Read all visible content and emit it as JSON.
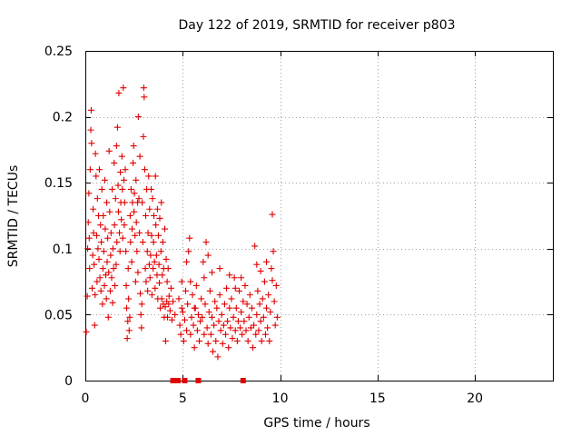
{
  "chart_data": {
    "type": "scatter",
    "title": "Day 122 of 2019, SRMTID for receiver p803",
    "xlabel": "GPS time / hours",
    "ylabel": "SRMTID / TECUs",
    "xlim": [
      0,
      24
    ],
    "ylim": [
      0,
      0.25
    ],
    "xticks": [
      0,
      5,
      10,
      15,
      20
    ],
    "xtick_labels": [
      "0",
      "5",
      "10",
      "15",
      "20"
    ],
    "yticks": [
      0,
      0.05,
      0.1,
      0.15,
      0.2,
      0.25
    ],
    "ytick_labels": [
      "0",
      "0.05",
      "0.1",
      "0.15",
      "0.2",
      "0.25"
    ],
    "grid": true,
    "marker_color": "#e00000",
    "series": [
      {
        "name": "SRMTID",
        "marker": "plus",
        "points": [
          [
            0.05,
            0.037
          ],
          [
            0.1,
            0.064
          ],
          [
            0.12,
            0.1
          ],
          [
            0.15,
            0.12
          ],
          [
            0.18,
            0.142
          ],
          [
            0.2,
            0.108
          ],
          [
            0.22,
            0.085
          ],
          [
            0.25,
            0.16
          ],
          [
            0.28,
            0.19
          ],
          [
            0.3,
            0.205
          ],
          [
            0.32,
            0.18
          ],
          [
            0.35,
            0.07
          ],
          [
            0.38,
            0.095
          ],
          [
            0.4,
            0.13
          ],
          [
            0.42,
            0.112
          ],
          [
            0.45,
            0.088
          ],
          [
            0.48,
            0.042
          ],
          [
            0.5,
            0.065
          ],
          [
            0.52,
            0.172
          ],
          [
            0.55,
            0.155
          ],
          [
            0.58,
            0.11
          ],
          [
            0.6,
            0.075
          ],
          [
            0.62,
            0.138
          ],
          [
            0.65,
            0.1
          ],
          [
            0.68,
            0.125
          ],
          [
            0.7,
            0.092
          ],
          [
            0.72,
            0.16
          ],
          [
            0.75,
            0.078
          ],
          [
            0.78,
            0.118
          ],
          [
            0.8,
            0.068
          ],
          [
            0.82,
            0.105
          ],
          [
            0.85,
            0.145
          ],
          [
            0.88,
            0.058
          ],
          [
            0.9,
            0.085
          ],
          [
            0.92,
            0.125
          ],
          [
            0.95,
            0.098
          ],
          [
            0.98,
            0.072
          ],
          [
            1.0,
            0.152
          ],
          [
            1.02,
            0.115
          ],
          [
            1.05,
            0.08
          ],
          [
            1.08,
            0.062
          ],
          [
            1.1,
            0.135
          ],
          [
            1.12,
            0.09
          ],
          [
            1.15,
            0.108
          ],
          [
            1.18,
            0.048
          ],
          [
            1.2,
            0.082
          ],
          [
            1.22,
            0.174
          ],
          [
            1.25,
            0.128
          ],
          [
            1.28,
            0.068
          ],
          [
            1.3,
            0.095
          ],
          [
            1.32,
            0.112
          ],
          [
            1.35,
            0.078
          ],
          [
            1.38,
            0.145
          ],
          [
            1.4,
            0.059
          ],
          [
            1.42,
            0.1
          ],
          [
            1.45,
            0.085
          ],
          [
            1.48,
            0.165
          ],
          [
            1.5,
            0.118
          ],
          [
            1.52,
            0.072
          ],
          [
            1.55,
            0.138
          ],
          [
            1.58,
            0.088
          ],
          [
            1.6,
            0.178
          ],
          [
            1.62,
            0.105
          ],
          [
            1.65,
            0.192
          ],
          [
            1.68,
            0.148
          ],
          [
            1.7,
            0.128
          ],
          [
            1.72,
            0.218
          ],
          [
            1.75,
            0.112
          ],
          [
            1.78,
            0.098
          ],
          [
            1.8,
            0.158
          ],
          [
            1.82,
            0.135
          ],
          [
            1.85,
            0.122
          ],
          [
            1.88,
            0.17
          ],
          [
            1.9,
            0.145
          ],
          [
            1.92,
            0.108
          ],
          [
            1.95,
            0.222
          ],
          [
            1.98,
            0.152
          ],
          [
            2.0,
            0.118
          ],
          [
            2.02,
            0.135
          ],
          [
            2.05,
            0.16
          ],
          [
            2.08,
            0.098
          ],
          [
            2.1,
            0.072
          ],
          [
            2.12,
            0.055
          ],
          [
            2.15,
            0.032
          ],
          [
            2.18,
            0.045
          ],
          [
            2.2,
            0.085
          ],
          [
            2.22,
            0.062
          ],
          [
            2.25,
            0.038
          ],
          [
            2.28,
            0.048
          ],
          [
            2.3,
            0.125
          ],
          [
            2.32,
            0.105
          ],
          [
            2.35,
            0.145
          ],
          [
            2.38,
            0.09
          ],
          [
            2.4,
            0.115
          ],
          [
            2.42,
            0.135
          ],
          [
            2.45,
            0.165
          ],
          [
            2.48,
            0.178
          ],
          [
            2.5,
            0.128
          ],
          [
            2.52,
            0.142
          ],
          [
            2.55,
            0.11
          ],
          [
            2.58,
            0.075
          ],
          [
            2.6,
            0.152
          ],
          [
            2.62,
            0.12
          ],
          [
            2.65,
            0.098
          ],
          [
            2.68,
            0.135
          ],
          [
            2.7,
            0.082
          ],
          [
            2.72,
            0.2
          ],
          [
            2.75,
            0.138
          ],
          [
            2.78,
            0.112
          ],
          [
            2.8,
            0.17
          ],
          [
            2.82,
            0.066
          ],
          [
            2.85,
            0.05
          ],
          [
            2.88,
            0.04
          ],
          [
            2.9,
            0.058
          ],
          [
            2.92,
            0.135
          ],
          [
            2.95,
            0.105
          ],
          [
            2.98,
            0.185
          ],
          [
            3.0,
            0.222
          ],
          [
            3.02,
            0.215
          ],
          [
            3.05,
            0.16
          ],
          [
            3.08,
            0.085
          ],
          [
            3.1,
            0.125
          ],
          [
            3.12,
            0.075
          ],
          [
            3.15,
            0.145
          ],
          [
            3.18,
            0.098
          ],
          [
            3.2,
            0.068
          ],
          [
            3.22,
            0.112
          ],
          [
            3.25,
            0.155
          ],
          [
            3.28,
            0.088
          ],
          [
            3.3,
            0.13
          ],
          [
            3.32,
            0.078
          ],
          [
            3.35,
            0.095
          ],
          [
            3.38,
            0.145
          ],
          [
            3.4,
            0.11
          ],
          [
            3.42,
            0.065
          ],
          [
            3.45,
            0.138
          ],
          [
            3.48,
            0.085
          ],
          [
            3.5,
            0.105
          ],
          [
            3.52,
            0.125
          ],
          [
            3.55,
            0.09
          ],
          [
            3.58,
            0.07
          ],
          [
            3.6,
            0.155
          ],
          [
            3.62,
            0.118
          ],
          [
            3.65,
            0.095
          ],
          [
            3.68,
            0.08
          ],
          [
            3.7,
            0.13
          ],
          [
            3.72,
            0.062
          ],
          [
            3.75,
            0.11
          ],
          [
            3.78,
            0.088
          ],
          [
            3.8,
            0.074
          ],
          [
            3.82,
            0.123
          ],
          [
            3.85,
            0.055
          ],
          [
            3.88,
            0.098
          ],
          [
            3.9,
            0.135
          ],
          [
            3.92,
            0.062
          ],
          [
            3.95,
            0.08
          ],
          [
            3.98,
            0.105
          ],
          [
            4.0,
            0.058
          ],
          [
            4.02,
            0.085
          ],
          [
            4.05,
            0.048
          ],
          [
            4.08,
            0.115
          ],
          [
            4.1,
            0.056
          ],
          [
            4.12,
            0.03
          ],
          [
            4.15,
            0.092
          ],
          [
            4.18,
            0.06
          ],
          [
            4.2,
            0.075
          ],
          [
            4.22,
            0.048
          ],
          [
            4.25,
            0.085
          ],
          [
            4.28,
            0.058
          ],
          [
            4.3,
            0.064
          ],
          [
            4.35,
            0.053
          ],
          [
            4.4,
            0.07
          ],
          [
            4.45,
            0.046
          ],
          [
            4.5,
            0.06
          ],
          [
            4.6,
            0.05
          ],
          [
            4.8,
            0.062
          ],
          [
            4.85,
            0.042
          ],
          [
            4.9,
            0.035
          ],
          [
            4.95,
            0.075
          ],
          [
            5.0,
            0.052
          ],
          [
            5.05,
            0.03
          ],
          [
            5.1,
            0.046
          ],
          [
            5.15,
            0.068
          ],
          [
            5.2,
            0.038
          ],
          [
            5.25,
            0.058
          ],
          [
            5.3,
            0.098
          ],
          [
            5.35,
            0.108
          ],
          [
            5.4,
            0.035
          ],
          [
            5.45,
            0.048
          ],
          [
            5.5,
            0.065
          ],
          [
            5.55,
            0.042
          ],
          [
            5.6,
            0.025
          ],
          [
            5.65,
            0.055
          ],
          [
            5.7,
            0.072
          ],
          [
            5.75,
            0.038
          ],
          [
            5.8,
            0.05
          ],
          [
            5.85,
            0.03
          ],
          [
            5.9,
            0.045
          ],
          [
            5.95,
            0.062
          ],
          [
            6.0,
            0.048
          ],
          [
            6.05,
            0.09
          ],
          [
            6.1,
            0.035
          ],
          [
            6.15,
            0.058
          ],
          [
            6.2,
            0.105
          ],
          [
            6.25,
            0.04
          ],
          [
            6.3,
            0.028
          ],
          [
            6.35,
            0.052
          ],
          [
            6.4,
            0.068
          ],
          [
            6.45,
            0.035
          ],
          [
            6.5,
            0.048
          ],
          [
            6.55,
            0.022
          ],
          [
            6.6,
            0.042
          ],
          [
            6.65,
            0.06
          ],
          [
            6.7,
            0.03
          ],
          [
            6.75,
            0.055
          ],
          [
            6.8,
            0.018
          ],
          [
            6.85,
            0.045
          ],
          [
            6.9,
            0.065
          ],
          [
            6.95,
            0.038
          ],
          [
            7.0,
            0.05
          ],
          [
            7.05,
            0.028
          ],
          [
            7.1,
            0.042
          ],
          [
            7.15,
            0.058
          ],
          [
            7.2,
            0.035
          ],
          [
            7.25,
            0.07
          ],
          [
            7.3,
            0.045
          ],
          [
            7.35,
            0.025
          ],
          [
            7.4,
            0.055
          ],
          [
            7.45,
            0.04
          ],
          [
            7.5,
            0.062
          ],
          [
            7.55,
            0.032
          ],
          [
            7.6,
            0.048
          ],
          [
            7.65,
            0.078
          ],
          [
            7.7,
            0.038
          ],
          [
            7.75,
            0.055
          ],
          [
            7.8,
            0.03
          ],
          [
            7.85,
            0.045
          ],
          [
            7.9,
            0.068
          ],
          [
            7.95,
            0.04
          ],
          [
            8.0,
            0.052
          ],
          [
            8.05,
            0.035
          ],
          [
            8.1,
            0.06
          ],
          [
            8.15,
            0.045
          ],
          [
            8.2,
            0.072
          ],
          [
            8.25,
            0.038
          ],
          [
            8.3,
            0.058
          ],
          [
            8.35,
            0.03
          ],
          [
            8.4,
            0.048
          ],
          [
            8.45,
            0.065
          ],
          [
            8.5,
            0.04
          ],
          [
            8.55,
            0.055
          ],
          [
            8.6,
            0.025
          ],
          [
            8.65,
            0.042
          ],
          [
            8.7,
            0.102
          ],
          [
            8.75,
            0.035
          ],
          [
            8.8,
            0.05
          ],
          [
            8.85,
            0.068
          ],
          [
            8.9,
            0.038
          ],
          [
            8.95,
            0.058
          ],
          [
            9.0,
            0.045
          ],
          [
            9.05,
            0.03
          ],
          [
            9.1,
            0.062
          ],
          [
            9.15,
            0.048
          ],
          [
            9.2,
            0.075
          ],
          [
            9.25,
            0.035
          ],
          [
            9.3,
            0.055
          ],
          [
            9.35,
            0.04
          ],
          [
            9.4,
            0.065
          ],
          [
            9.45,
            0.03
          ],
          [
            9.5,
            0.052
          ],
          [
            9.55,
            0.085
          ],
          [
            9.6,
            0.126
          ],
          [
            9.65,
            0.098
          ],
          [
            9.7,
            0.06
          ],
          [
            9.75,
            0.042
          ],
          [
            9.8,
            0.072
          ],
          [
            9.85,
            0.048
          ],
          [
            5.2,
            0.09
          ],
          [
            5.4,
            0.075
          ],
          [
            6.3,
            0.095
          ],
          [
            6.5,
            0.082
          ],
          [
            6.9,
            0.085
          ],
          [
            7.4,
            0.08
          ],
          [
            8.0,
            0.078
          ],
          [
            8.8,
            0.088
          ],
          [
            9.3,
            0.09
          ],
          [
            9.6,
            0.076
          ],
          [
            9.0,
            0.083
          ],
          [
            7.7,
            0.07
          ],
          [
            6.1,
            0.078
          ],
          [
            5.6,
            0.055
          ],
          [
            4.95,
            0.055
          ]
        ]
      },
      {
        "name": "zero-level markers",
        "marker": "square",
        "points": [
          [
            4.5,
            0
          ],
          [
            4.75,
            0
          ],
          [
            5.1,
            0
          ],
          [
            5.8,
            0
          ],
          [
            8.1,
            0
          ]
        ]
      }
    ]
  }
}
